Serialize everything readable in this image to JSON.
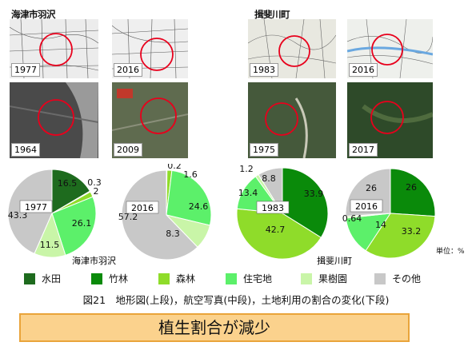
{
  "areas": [
    {
      "name": "海津市羽沢",
      "map_years": [
        "1977",
        "2016"
      ],
      "photo_years": [
        "1964",
        "2009"
      ]
    },
    {
      "name": "揖斐川町",
      "map_years": [
        "1983",
        "2016"
      ],
      "photo_years": [
        "1975",
        "2017"
      ]
    }
  ],
  "chart_data": [
    {
      "type": "pie",
      "center_label": "1977",
      "region_label": "",
      "categories": [
        "水田",
        "竹林",
        "森林",
        "住宅地",
        "果樹園",
        "その他"
      ],
      "values": [
        16.5,
        0.3,
        2.0,
        26.1,
        11.5,
        43.3
      ]
    },
    {
      "type": "pie",
      "center_label": "2016",
      "region_label": "海津市羽沢",
      "categories": [
        "水田",
        "竹林",
        "森林",
        "住宅地",
        "果樹園",
        "その他"
      ],
      "values": [
        0,
        0.2,
        1.6,
        24.6,
        8.3,
        57.2
      ]
    },
    {
      "type": "pie",
      "center_label": "1983",
      "region_label": "",
      "categories": [
        "水田",
        "竹林",
        "森林",
        "住宅地",
        "果樹園",
        "その他"
      ],
      "values": [
        0,
        33.9,
        42.7,
        13.4,
        1.2,
        8.8
      ]
    },
    {
      "type": "pie",
      "center_label": "2016",
      "region_label": "揖斐川町",
      "categories": [
        "水田",
        "竹林",
        "森林",
        "住宅地",
        "果樹園",
        "その他"
      ],
      "values": [
        0,
        26.0,
        33.2,
        14.0,
        0.64,
        26.0
      ]
    }
  ],
  "legend": [
    {
      "label": "水田",
      "color": "#1e6b1e"
    },
    {
      "label": "竹林",
      "color": "#0a8a0a"
    },
    {
      "label": "森林",
      "color": "#8fdc2a"
    },
    {
      "label": "住宅地",
      "color": "#5cf06a"
    },
    {
      "label": "果樹園",
      "color": "#c9f5a8"
    },
    {
      "label": "その他",
      "color": "#c8c8c8"
    }
  ],
  "unit_label": "単位：%",
  "caption": "図21　地形図(上段)，航空写真(中段)，土地利用の割合の変化(下段)",
  "banner": "植生割合が減少"
}
